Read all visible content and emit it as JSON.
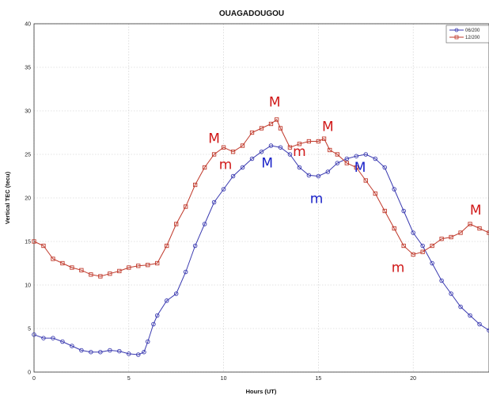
{
  "chart_data": {
    "type": "line",
    "title": "OUAGADOUGOU",
    "xlabel": "Hours (UT)",
    "ylabel": "Vertical TEC (tecu)",
    "xlim": [
      0,
      24
    ],
    "ylim": [
      0,
      40
    ],
    "xticks": [
      0,
      5,
      10,
      15,
      20
    ],
    "yticks": [
      0,
      5,
      10,
      15,
      20,
      25,
      30,
      35,
      40
    ],
    "grid": true,
    "legend_position": "top-right",
    "series": [
      {
        "name": "06/200",
        "color": "#3a3ab0",
        "marker": "circle",
        "points": [
          [
            0,
            4.3
          ],
          [
            0.5,
            3.9
          ],
          [
            1,
            3.9
          ],
          [
            1.5,
            3.5
          ],
          [
            2,
            3.0
          ],
          [
            2.5,
            2.5
          ],
          [
            3,
            2.3
          ],
          [
            3.5,
            2.3
          ],
          [
            4,
            2.5
          ],
          [
            4.5,
            2.4
          ],
          [
            5,
            2.1
          ],
          [
            5.5,
            2.0
          ],
          [
            5.8,
            2.3
          ],
          [
            6,
            3.5
          ],
          [
            6.3,
            5.5
          ],
          [
            6.5,
            6.5
          ],
          [
            7,
            8.2
          ],
          [
            7.5,
            9.0
          ],
          [
            8,
            11.5
          ],
          [
            8.5,
            14.5
          ],
          [
            9,
            17.0
          ],
          [
            9.5,
            19.5
          ],
          [
            10,
            21.0
          ],
          [
            10.5,
            22.5
          ],
          [
            11,
            23.5
          ],
          [
            11.5,
            24.5
          ],
          [
            12,
            25.3
          ],
          [
            12.5,
            26.0
          ],
          [
            13,
            25.8
          ],
          [
            13.5,
            25.0
          ],
          [
            14,
            23.5
          ],
          [
            14.5,
            22.6
          ],
          [
            15,
            22.5
          ],
          [
            15.5,
            23.0
          ],
          [
            16,
            24.0
          ],
          [
            16.5,
            24.5
          ],
          [
            17,
            24.8
          ],
          [
            17.5,
            25.0
          ],
          [
            18,
            24.5
          ],
          [
            18.5,
            23.5
          ],
          [
            19,
            21.0
          ],
          [
            19.5,
            18.5
          ],
          [
            20,
            16.0
          ],
          [
            20.5,
            14.5
          ],
          [
            21,
            12.5
          ],
          [
            21.5,
            10.5
          ],
          [
            22,
            9.0
          ],
          [
            22.5,
            7.5
          ],
          [
            23,
            6.5
          ],
          [
            23.5,
            5.5
          ],
          [
            24,
            4.8
          ]
        ]
      },
      {
        "name": "12/200",
        "color": "#c0392b",
        "marker": "square",
        "points": [
          [
            0,
            15.0
          ],
          [
            0.5,
            14.5
          ],
          [
            1,
            13.0
          ],
          [
            1.5,
            12.5
          ],
          [
            2,
            12.0
          ],
          [
            2.5,
            11.7
          ],
          [
            3,
            11.2
          ],
          [
            3.5,
            11.0
          ],
          [
            4,
            11.3
          ],
          [
            4.5,
            11.6
          ],
          [
            5,
            12.0
          ],
          [
            5.5,
            12.2
          ],
          [
            6,
            12.3
          ],
          [
            6.5,
            12.5
          ],
          [
            7,
            14.5
          ],
          [
            7.5,
            17.0
          ],
          [
            8,
            19.0
          ],
          [
            8.5,
            21.5
          ],
          [
            9,
            23.5
          ],
          [
            9.5,
            25.0
          ],
          [
            10,
            25.8
          ],
          [
            10.5,
            25.3
          ],
          [
            11,
            26.0
          ],
          [
            11.5,
            27.5
          ],
          [
            12,
            28.0
          ],
          [
            12.5,
            28.5
          ],
          [
            12.8,
            29.0
          ],
          [
            13,
            28.0
          ],
          [
            13.5,
            25.8
          ],
          [
            14,
            26.2
          ],
          [
            14.5,
            26.5
          ],
          [
            15,
            26.5
          ],
          [
            15.3,
            26.8
          ],
          [
            15.6,
            25.5
          ],
          [
            16,
            25.0
          ],
          [
            16.5,
            24.0
          ],
          [
            17,
            23.5
          ],
          [
            17.5,
            22.0
          ],
          [
            18,
            20.5
          ],
          [
            18.5,
            18.5
          ],
          [
            19,
            16.5
          ],
          [
            19.5,
            14.5
          ],
          [
            20,
            13.5
          ],
          [
            20.5,
            13.8
          ],
          [
            21,
            14.5
          ],
          [
            21.5,
            15.3
          ],
          [
            22,
            15.5
          ],
          [
            22.5,
            16.0
          ],
          [
            23,
            17.0
          ],
          [
            23.5,
            16.5
          ],
          [
            24,
            16.0
          ]
        ]
      }
    ],
    "annotations": [
      {
        "text": "M",
        "x": 9.5,
        "y": 26.3,
        "color": "#d01818"
      },
      {
        "text": "m",
        "x": 10.1,
        "y": 23.3,
        "color": "#d01818"
      },
      {
        "text": "M",
        "x": 12.7,
        "y": 30.5,
        "color": "#d01818"
      },
      {
        "text": "m",
        "x": 14.0,
        "y": 24.8,
        "color": "#d01818"
      },
      {
        "text": "M",
        "x": 15.5,
        "y": 27.7,
        "color": "#d01818"
      },
      {
        "text": "m",
        "x": 19.2,
        "y": 11.5,
        "color": "#d01818"
      },
      {
        "text": "M",
        "x": 23.3,
        "y": 18.1,
        "color": "#d01818"
      },
      {
        "text": "M",
        "x": 12.3,
        "y": 23.5,
        "color": "#1a22c8"
      },
      {
        "text": "m",
        "x": 14.9,
        "y": 19.4,
        "color": "#1a22c8"
      },
      {
        "text": "M",
        "x": 17.2,
        "y": 23.0,
        "color": "#1a22c8"
      }
    ]
  }
}
